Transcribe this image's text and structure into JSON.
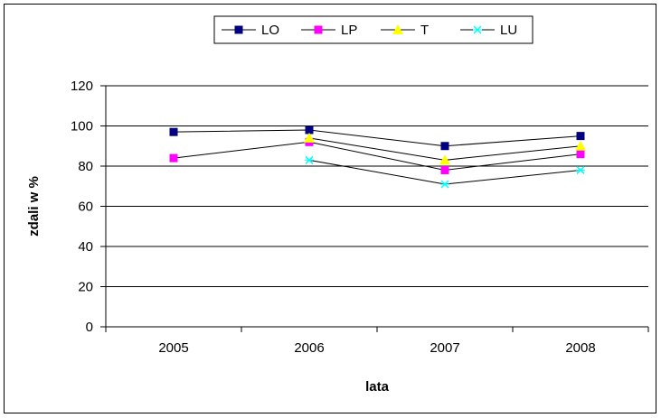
{
  "chart_data": {
    "type": "line",
    "title": "",
    "xlabel": "lata",
    "ylabel": "zdali w %",
    "categories": [
      "2005",
      "2006",
      "2007",
      "2008"
    ],
    "ylim": [
      0,
      120
    ],
    "yticks": [
      "0",
      "20",
      "40",
      "60",
      "80",
      "100",
      "120"
    ],
    "ytick_values": [
      0,
      20,
      40,
      60,
      80,
      100,
      120
    ],
    "grid": "horizontal",
    "legend_position": "top",
    "series": [
      {
        "name": "LO",
        "values": [
          97,
          98,
          90,
          95
        ],
        "color": "#000080",
        "marker": "square"
      },
      {
        "name": "LP",
        "values": [
          84,
          92,
          78,
          86
        ],
        "color": "#FF00FF",
        "marker": "square"
      },
      {
        "name": "T",
        "values": [
          null,
          94,
          83,
          90
        ],
        "color": "#FFFF00",
        "marker": "triangle"
      },
      {
        "name": "LU",
        "values": [
          null,
          83,
          71,
          78
        ],
        "color": "#00FFFF",
        "marker": "x"
      }
    ]
  }
}
